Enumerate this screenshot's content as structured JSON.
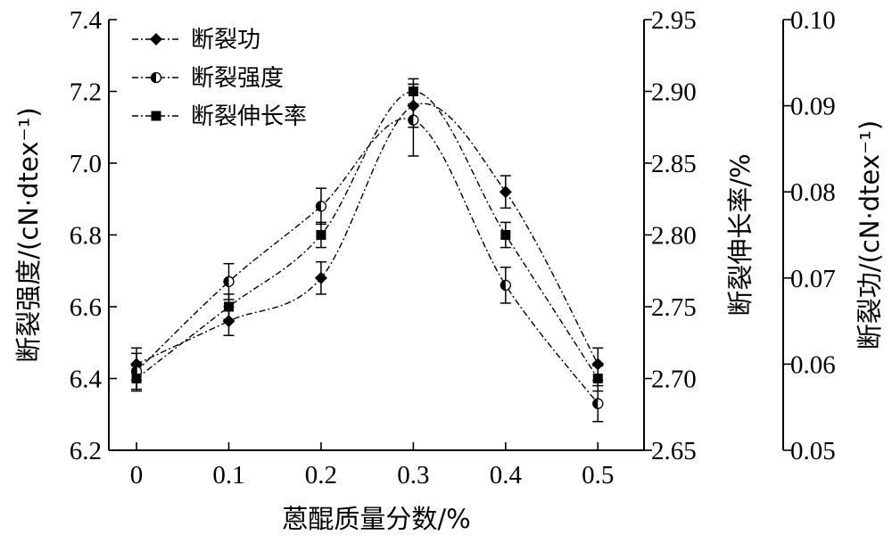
{
  "chart_data": {
    "type": "line",
    "xlabel": "蒽醌质量分数/%",
    "x": [
      0,
      0.1,
      0.2,
      0.3,
      0.4,
      0.5
    ],
    "x_tick_labels": [
      "0",
      "0.1",
      "0.2",
      "0.3",
      "0.4",
      "0.5"
    ],
    "xlim": [
      -0.03,
      0.55
    ],
    "axes": [
      {
        "id": "strength",
        "label": "断裂强度/(cN·dtex⁻¹)",
        "position": "left",
        "ylim": [
          6.2,
          7.4
        ],
        "ticks": [
          "6.2",
          "6.4",
          "6.6",
          "6.8",
          "7.0",
          "7.2",
          "7.4"
        ]
      },
      {
        "id": "elongation",
        "label": "断裂伸长率/%",
        "position": "right",
        "ylim": [
          2.65,
          2.95
        ],
        "ticks": [
          "2.65",
          "2.70",
          "2.75",
          "2.80",
          "2.85",
          "2.90",
          "2.95"
        ]
      },
      {
        "id": "work",
        "label": "断裂功/(cN·dtex⁻¹)",
        "position": "right-offset",
        "ylim": [
          0.05,
          0.1
        ],
        "ticks": [
          "0.05",
          "0.06",
          "0.07",
          "0.08",
          "0.09",
          "0.10"
        ]
      }
    ],
    "series": [
      {
        "name": "断裂功",
        "marker": "diamond",
        "values": [
          6.44,
          6.56,
          6.68,
          7.16,
          6.92,
          6.44
        ],
        "errors": [
          0.045,
          0.04,
          0.045,
          0.06,
          0.045,
          0.045
        ]
      },
      {
        "name": "断裂强度",
        "marker": "half-circle",
        "values": [
          6.42,
          6.67,
          6.88,
          7.12,
          6.66,
          6.33
        ],
        "errors": [
          0.05,
          0.05,
          0.05,
          0.1,
          0.05,
          0.05
        ]
      },
      {
        "name": "断裂伸长率",
        "marker": "square",
        "values": [
          6.4,
          6.6,
          6.8,
          7.2,
          6.8,
          6.4
        ],
        "errors": [
          0.035,
          0.035,
          0.035,
          0.035,
          0.035,
          0.035
        ]
      }
    ],
    "legend": "top-left",
    "grid": false
  }
}
